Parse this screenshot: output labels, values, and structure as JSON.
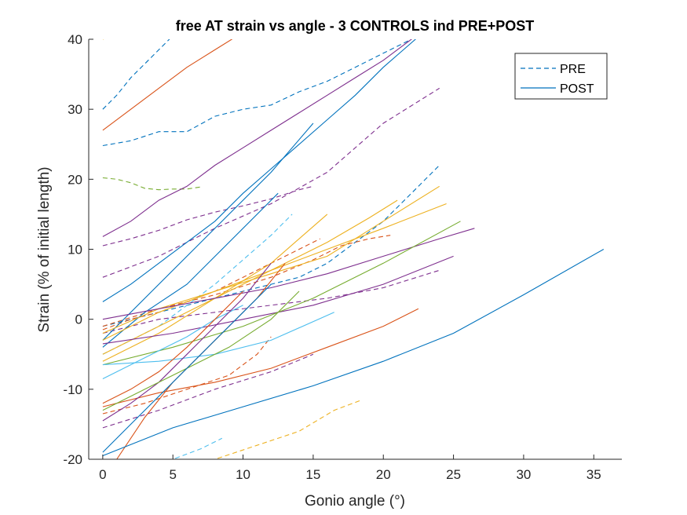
{
  "chart_data": {
    "type": "line",
    "title": "free AT strain vs angle - 3 CONTROLS ind PRE+POST",
    "xlabel": "Gonio angle (°)",
    "ylabel": "Strain (% of initial length)",
    "xlim": [
      -1,
      37
    ],
    "ylim": [
      -20,
      40
    ],
    "xticks": [
      0,
      5,
      10,
      15,
      20,
      25,
      30,
      35
    ],
    "yticks": [
      -20,
      -10,
      0,
      10,
      20,
      30,
      40
    ],
    "grid": false,
    "legend": {
      "placement": "top-right",
      "entries": [
        {
          "label": "PRE",
          "style": "dashed",
          "color": "#0072BD"
        },
        {
          "label": "POST",
          "style": "solid",
          "color": "#0072BD"
        }
      ]
    },
    "series": [
      {
        "style": "dashed",
        "color": "#0072BD",
        "x": [
          0,
          1,
          2,
          3,
          4,
          5,
          6,
          7
        ],
        "y": [
          30,
          32,
          34.5,
          36.5,
          38.5,
          40.5,
          43,
          45
        ]
      },
      {
        "style": "dashed",
        "color": "#0072BD",
        "x": [
          0,
          2,
          4,
          6,
          8,
          10,
          12,
          14,
          16,
          18,
          20,
          22
        ],
        "y": [
          24.8,
          25.5,
          26.8,
          26.8,
          29,
          30,
          30.6,
          32.5,
          34,
          36,
          38,
          40
        ]
      },
      {
        "style": "dashed",
        "color": "#77AC30",
        "x": [
          0,
          1,
          2,
          3,
          4,
          5,
          6,
          7
        ],
        "y": [
          20.2,
          20,
          19.5,
          18.7,
          18.5,
          18.6,
          18.6,
          18.9
        ]
      },
      {
        "style": "dashed",
        "color": "#7E2F8E",
        "x": [
          0,
          2,
          4,
          6,
          8,
          10,
          12,
          14,
          15
        ],
        "y": [
          10.5,
          11.5,
          12.7,
          14.2,
          15.3,
          16.2,
          17.2,
          18.5,
          19
        ]
      },
      {
        "style": "dashed",
        "color": "#7E2F8E",
        "x": [
          0,
          4,
          8,
          12,
          16,
          20,
          24
        ],
        "y": [
          6,
          9,
          13,
          16.5,
          21,
          28,
          33
        ]
      },
      {
        "style": "dashed",
        "color": "#0072BD",
        "x": [
          0,
          4,
          8,
          10,
          12,
          14,
          16,
          18,
          20,
          22,
          24
        ],
        "y": [
          -1,
          1,
          3,
          4,
          5,
          6,
          8,
          11,
          14,
          18,
          22
        ]
      },
      {
        "style": "dashed",
        "color": "#D95319",
        "x": [
          0,
          4,
          8,
          12,
          15,
          17,
          19,
          20.5
        ],
        "y": [
          -1,
          1.5,
          3.5,
          6,
          8.5,
          10.5,
          11.5,
          12
        ]
      },
      {
        "style": "dashed",
        "color": "#7E2F8E",
        "x": [
          0,
          4,
          8,
          12,
          16,
          20,
          24
        ],
        "y": [
          -2,
          0,
          1,
          2,
          3,
          4.5,
          7
        ]
      },
      {
        "style": "dashed",
        "color": "#D95319",
        "x": [
          0,
          2,
          4,
          6,
          8,
          10,
          12,
          14,
          15.5
        ],
        "y": [
          -1.5,
          0,
          1,
          2.5,
          4,
          6,
          8,
          10,
          11.5
        ]
      },
      {
        "style": "dashed",
        "color": "#4DBEEE",
        "x": [
          0,
          2,
          4,
          6,
          8,
          10,
          12,
          13.5
        ],
        "y": [
          -5,
          -3,
          -1,
          2,
          5,
          8.5,
          12,
          15
        ]
      },
      {
        "style": "dashed",
        "color": "#7E2F8E",
        "x": [
          0,
          4,
          8,
          12,
          15
        ],
        "y": [
          -15.5,
          -13,
          -10,
          -7.5,
          -5
        ]
      },
      {
        "style": "dashed",
        "color": "#D95319",
        "x": [
          0,
          3,
          6,
          9,
          11,
          12
        ],
        "y": [
          -13.5,
          -12,
          -10,
          -8,
          -5,
          -2.5
        ]
      },
      {
        "style": "dashed",
        "color": "#4DBEEE",
        "x": [
          3,
          5,
          7,
          8.5
        ],
        "y": [
          -21,
          -20,
          -18.5,
          -17
        ]
      },
      {
        "style": "dashed",
        "color": "#EDB120",
        "x": [
          5,
          8,
          11,
          14,
          16.5,
          18.5
        ],
        "y": [
          -22,
          -20,
          -18,
          -16,
          -13,
          -11.5
        ]
      },
      {
        "style": "dashed",
        "color": "#EDB120",
        "x": [
          0,
          0.3
        ],
        "y": [
          40,
          40.2
        ]
      },
      {
        "style": "solid",
        "color": "#D95319",
        "x": [
          0,
          2,
          4,
          6,
          8,
          10
        ],
        "y": [
          27,
          30,
          33,
          36,
          38.5,
          41
        ]
      },
      {
        "style": "solid",
        "color": "#7E2F8E",
        "x": [
          0,
          2,
          4,
          6,
          8,
          10,
          12,
          14,
          16,
          18,
          20,
          22,
          24
        ],
        "y": [
          11.8,
          14,
          17,
          19,
          22,
          24.5,
          27,
          29.5,
          32,
          34.5,
          37,
          40,
          43
        ]
      },
      {
        "style": "solid",
        "color": "#0072BD",
        "x": [
          0,
          2,
          4,
          6,
          8,
          10,
          12,
          14,
          16,
          18,
          20,
          22,
          24
        ],
        "y": [
          2.5,
          5,
          8,
          11,
          14,
          18,
          21.5,
          25,
          28.5,
          32,
          36,
          39.5,
          43
        ]
      },
      {
        "style": "solid",
        "color": "#0072BD",
        "x": [
          0,
          3,
          6,
          9,
          12,
          15
        ],
        "y": [
          -3,
          3,
          9,
          15,
          21,
          28
        ]
      },
      {
        "style": "solid",
        "color": "#0072BD",
        "x": [
          0,
          3,
          6,
          9,
          12.5
        ],
        "y": [
          -4,
          1,
          5,
          11,
          18
        ]
      },
      {
        "style": "solid",
        "color": "#EDB120",
        "x": [
          0,
          4,
          8,
          12,
          16,
          20,
          24
        ],
        "y": [
          -2,
          1.5,
          4,
          6.5,
          9,
          14,
          19
        ]
      },
      {
        "style": "solid",
        "color": "#EDB120",
        "x": [
          0,
          4,
          8,
          12,
          16,
          19,
          21
        ],
        "y": [
          -5,
          -1,
          3,
          7,
          11,
          14.5,
          17
        ]
      },
      {
        "style": "solid",
        "color": "#EDB120",
        "x": [
          0,
          4,
          8,
          12,
          16,
          20,
          24.5
        ],
        "y": [
          -3,
          1,
          4,
          7,
          10,
          13,
          16.5
        ]
      },
      {
        "style": "solid",
        "color": "#EDB120",
        "x": [
          0,
          4,
          8,
          12,
          16
        ],
        "y": [
          -6,
          -2,
          3,
          8,
          15
        ]
      },
      {
        "style": "solid",
        "color": "#7E2F8E",
        "x": [
          0,
          4,
          8,
          12,
          16,
          20,
          24,
          26.5
        ],
        "y": [
          0,
          1.5,
          3,
          4.5,
          6.5,
          9,
          11.5,
          13
        ]
      },
      {
        "style": "solid",
        "color": "#7E2F8E",
        "x": [
          0,
          5,
          10,
          15,
          20,
          25
        ],
        "y": [
          -3.5,
          -2,
          0,
          2,
          5,
          9
        ]
      },
      {
        "style": "solid",
        "color": "#77AC30",
        "x": [
          0,
          5,
          10,
          15,
          20,
          25.5
        ],
        "y": [
          -6.5,
          -4,
          -1,
          3,
          8,
          14
        ]
      },
      {
        "style": "solid",
        "color": "#4DBEEE",
        "x": [
          0,
          4,
          8,
          12,
          16.5
        ],
        "y": [
          -6.5,
          -6,
          -5,
          -3,
          1
        ]
      },
      {
        "style": "solid",
        "color": "#4DBEEE",
        "x": [
          0,
          2,
          4,
          6,
          8,
          10
        ],
        "y": [
          -8.5,
          -6.5,
          -4.5,
          -2.5,
          0,
          2
        ]
      },
      {
        "style": "solid",
        "color": "#D95319",
        "x": [
          0,
          4,
          8,
          12,
          16,
          20,
          22.5
        ],
        "y": [
          -12.5,
          -10.5,
          -9,
          -7,
          -4,
          -1,
          1.5
        ]
      },
      {
        "style": "solid",
        "color": "#D95319",
        "x": [
          0,
          2,
          4,
          6,
          8,
          10
        ],
        "y": [
          -12,
          -10,
          -7.5,
          -4,
          0,
          4
        ]
      },
      {
        "style": "solid",
        "color": "#D95319",
        "x": [
          1,
          3,
          5,
          7,
          9,
          11,
          13
        ],
        "y": [
          -20,
          -14,
          -9,
          -5,
          -1,
          3,
          8
        ]
      },
      {
        "style": "solid",
        "color": "#7E2F8E",
        "x": [
          0,
          2,
          4,
          6,
          8,
          10,
          12
        ],
        "y": [
          -14.5,
          -12,
          -9,
          -5,
          -1,
          3,
          8
        ]
      },
      {
        "style": "solid",
        "color": "#77AC30",
        "x": [
          0,
          3,
          6,
          9,
          12,
          14
        ],
        "y": [
          -13,
          -10,
          -7,
          -4,
          0,
          4
        ]
      },
      {
        "style": "solid",
        "color": "#0072BD",
        "x": [
          0,
          5,
          10,
          15,
          20,
          25,
          30,
          35.7
        ],
        "y": [
          -19.5,
          -15.5,
          -12.5,
          -9.5,
          -6,
          -2,
          3.5,
          10
        ]
      },
      {
        "style": "solid",
        "color": "#0072BD",
        "x": [
          0,
          2,
          4,
          6,
          8,
          10,
          12
        ],
        "y": [
          -19,
          -15,
          -11,
          -7,
          -3,
          1,
          5
        ]
      }
    ]
  }
}
